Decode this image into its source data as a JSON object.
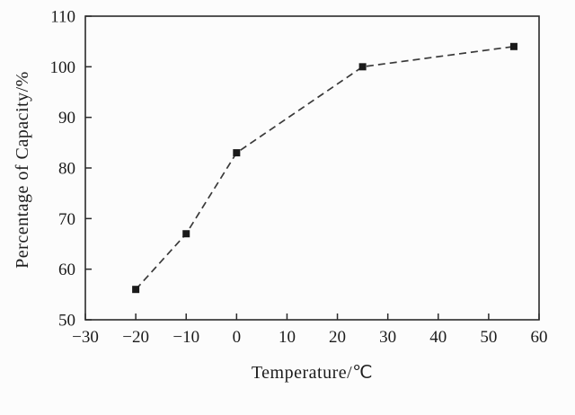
{
  "chart_data": {
    "type": "line",
    "title": "",
    "xlabel": "Temperature/℃",
    "ylabel": "Percentage of Capacity/%",
    "x": [
      -20,
      -10,
      0,
      25,
      55
    ],
    "y": [
      56,
      67,
      83,
      100,
      104
    ],
    "xlim": [
      -30,
      60
    ],
    "ylim": [
      50,
      110
    ],
    "xticks": [
      -30,
      -20,
      -10,
      0,
      10,
      20,
      30,
      40,
      50,
      60
    ],
    "yticks": [
      50,
      60,
      70,
      80,
      90,
      100,
      110
    ],
    "line_style": "dashed",
    "marker": "square",
    "line_color": "#3a3a3a",
    "marker_color": "#1a1a1a",
    "frame_color": "#2b2b2b",
    "grid": false,
    "legend": null
  }
}
